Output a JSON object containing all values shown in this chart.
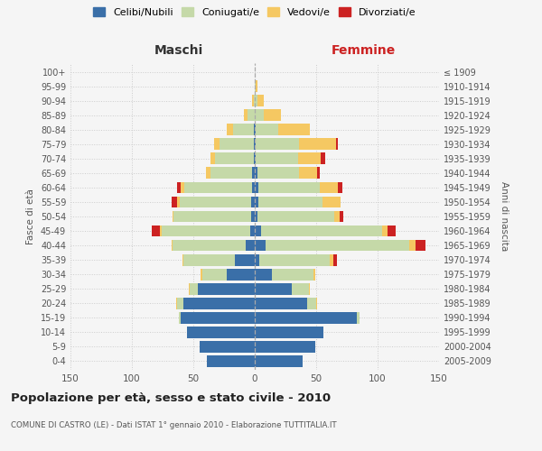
{
  "age_groups": [
    "0-4",
    "5-9",
    "10-14",
    "15-19",
    "20-24",
    "25-29",
    "30-34",
    "35-39",
    "40-44",
    "45-49",
    "50-54",
    "55-59",
    "60-64",
    "65-69",
    "70-74",
    "75-79",
    "80-84",
    "85-89",
    "90-94",
    "95-99",
    "100+"
  ],
  "birth_years": [
    "2005-2009",
    "2000-2004",
    "1995-1999",
    "1990-1994",
    "1985-1989",
    "1980-1984",
    "1975-1979",
    "1970-1974",
    "1965-1969",
    "1960-1964",
    "1955-1959",
    "1950-1954",
    "1945-1949",
    "1940-1944",
    "1935-1939",
    "1930-1934",
    "1925-1929",
    "1920-1924",
    "1915-1919",
    "1910-1914",
    "≤ 1909"
  ],
  "male": {
    "celibi": [
      39,
      45,
      55,
      60,
      58,
      46,
      23,
      16,
      7,
      4,
      3,
      3,
      2,
      2,
      1,
      1,
      1,
      0,
      0,
      0,
      0
    ],
    "coniugati": [
      0,
      0,
      0,
      2,
      5,
      7,
      20,
      42,
      60,
      72,
      63,
      58,
      55,
      34,
      31,
      28,
      17,
      6,
      1,
      0,
      0
    ],
    "vedovi": [
      0,
      0,
      0,
      0,
      1,
      1,
      1,
      1,
      1,
      1,
      1,
      2,
      3,
      4,
      4,
      4,
      5,
      3,
      1,
      0,
      0
    ],
    "divorziati": [
      0,
      0,
      0,
      0,
      0,
      0,
      0,
      0,
      0,
      7,
      0,
      5,
      3,
      0,
      0,
      0,
      0,
      0,
      0,
      0,
      0
    ]
  },
  "female": {
    "nubili": [
      39,
      49,
      56,
      83,
      43,
      30,
      14,
      4,
      9,
      5,
      2,
      3,
      3,
      2,
      1,
      1,
      1,
      0,
      0,
      0,
      0
    ],
    "coniugate": [
      0,
      0,
      0,
      2,
      7,
      14,
      34,
      57,
      117,
      99,
      63,
      52,
      50,
      34,
      34,
      35,
      18,
      7,
      2,
      1,
      0
    ],
    "vedove": [
      0,
      0,
      0,
      0,
      1,
      1,
      1,
      3,
      5,
      4,
      4,
      15,
      15,
      15,
      19,
      30,
      26,
      14,
      5,
      1,
      0
    ],
    "divorziate": [
      0,
      0,
      0,
      0,
      0,
      0,
      0,
      3,
      8,
      7,
      3,
      0,
      3,
      2,
      3,
      2,
      0,
      0,
      0,
      0,
      0
    ]
  },
  "colors": {
    "celibi": "#3a6fa8",
    "coniugati": "#c5d9a8",
    "vedovi": "#f5c862",
    "divorziati": "#cc2222"
  },
  "legend_labels": [
    "Celibi/Nubili",
    "Coniugati/e",
    "Vedovi/e",
    "Divorziati/e"
  ],
  "title": "Popolazione per età, sesso e stato civile - 2010",
  "subtitle": "COMUNE DI CASTRO (LE) - Dati ISTAT 1° gennaio 2010 - Elaborazione TUTTITALIA.IT",
  "xlabel_left": "Maschi",
  "xlabel_right": "Femmine",
  "ylabel_left": "Fasce di età",
  "ylabel_right": "Anni di nascita",
  "xlim": 150,
  "background_color": "#f5f5f5",
  "grid_color": "#cccccc"
}
